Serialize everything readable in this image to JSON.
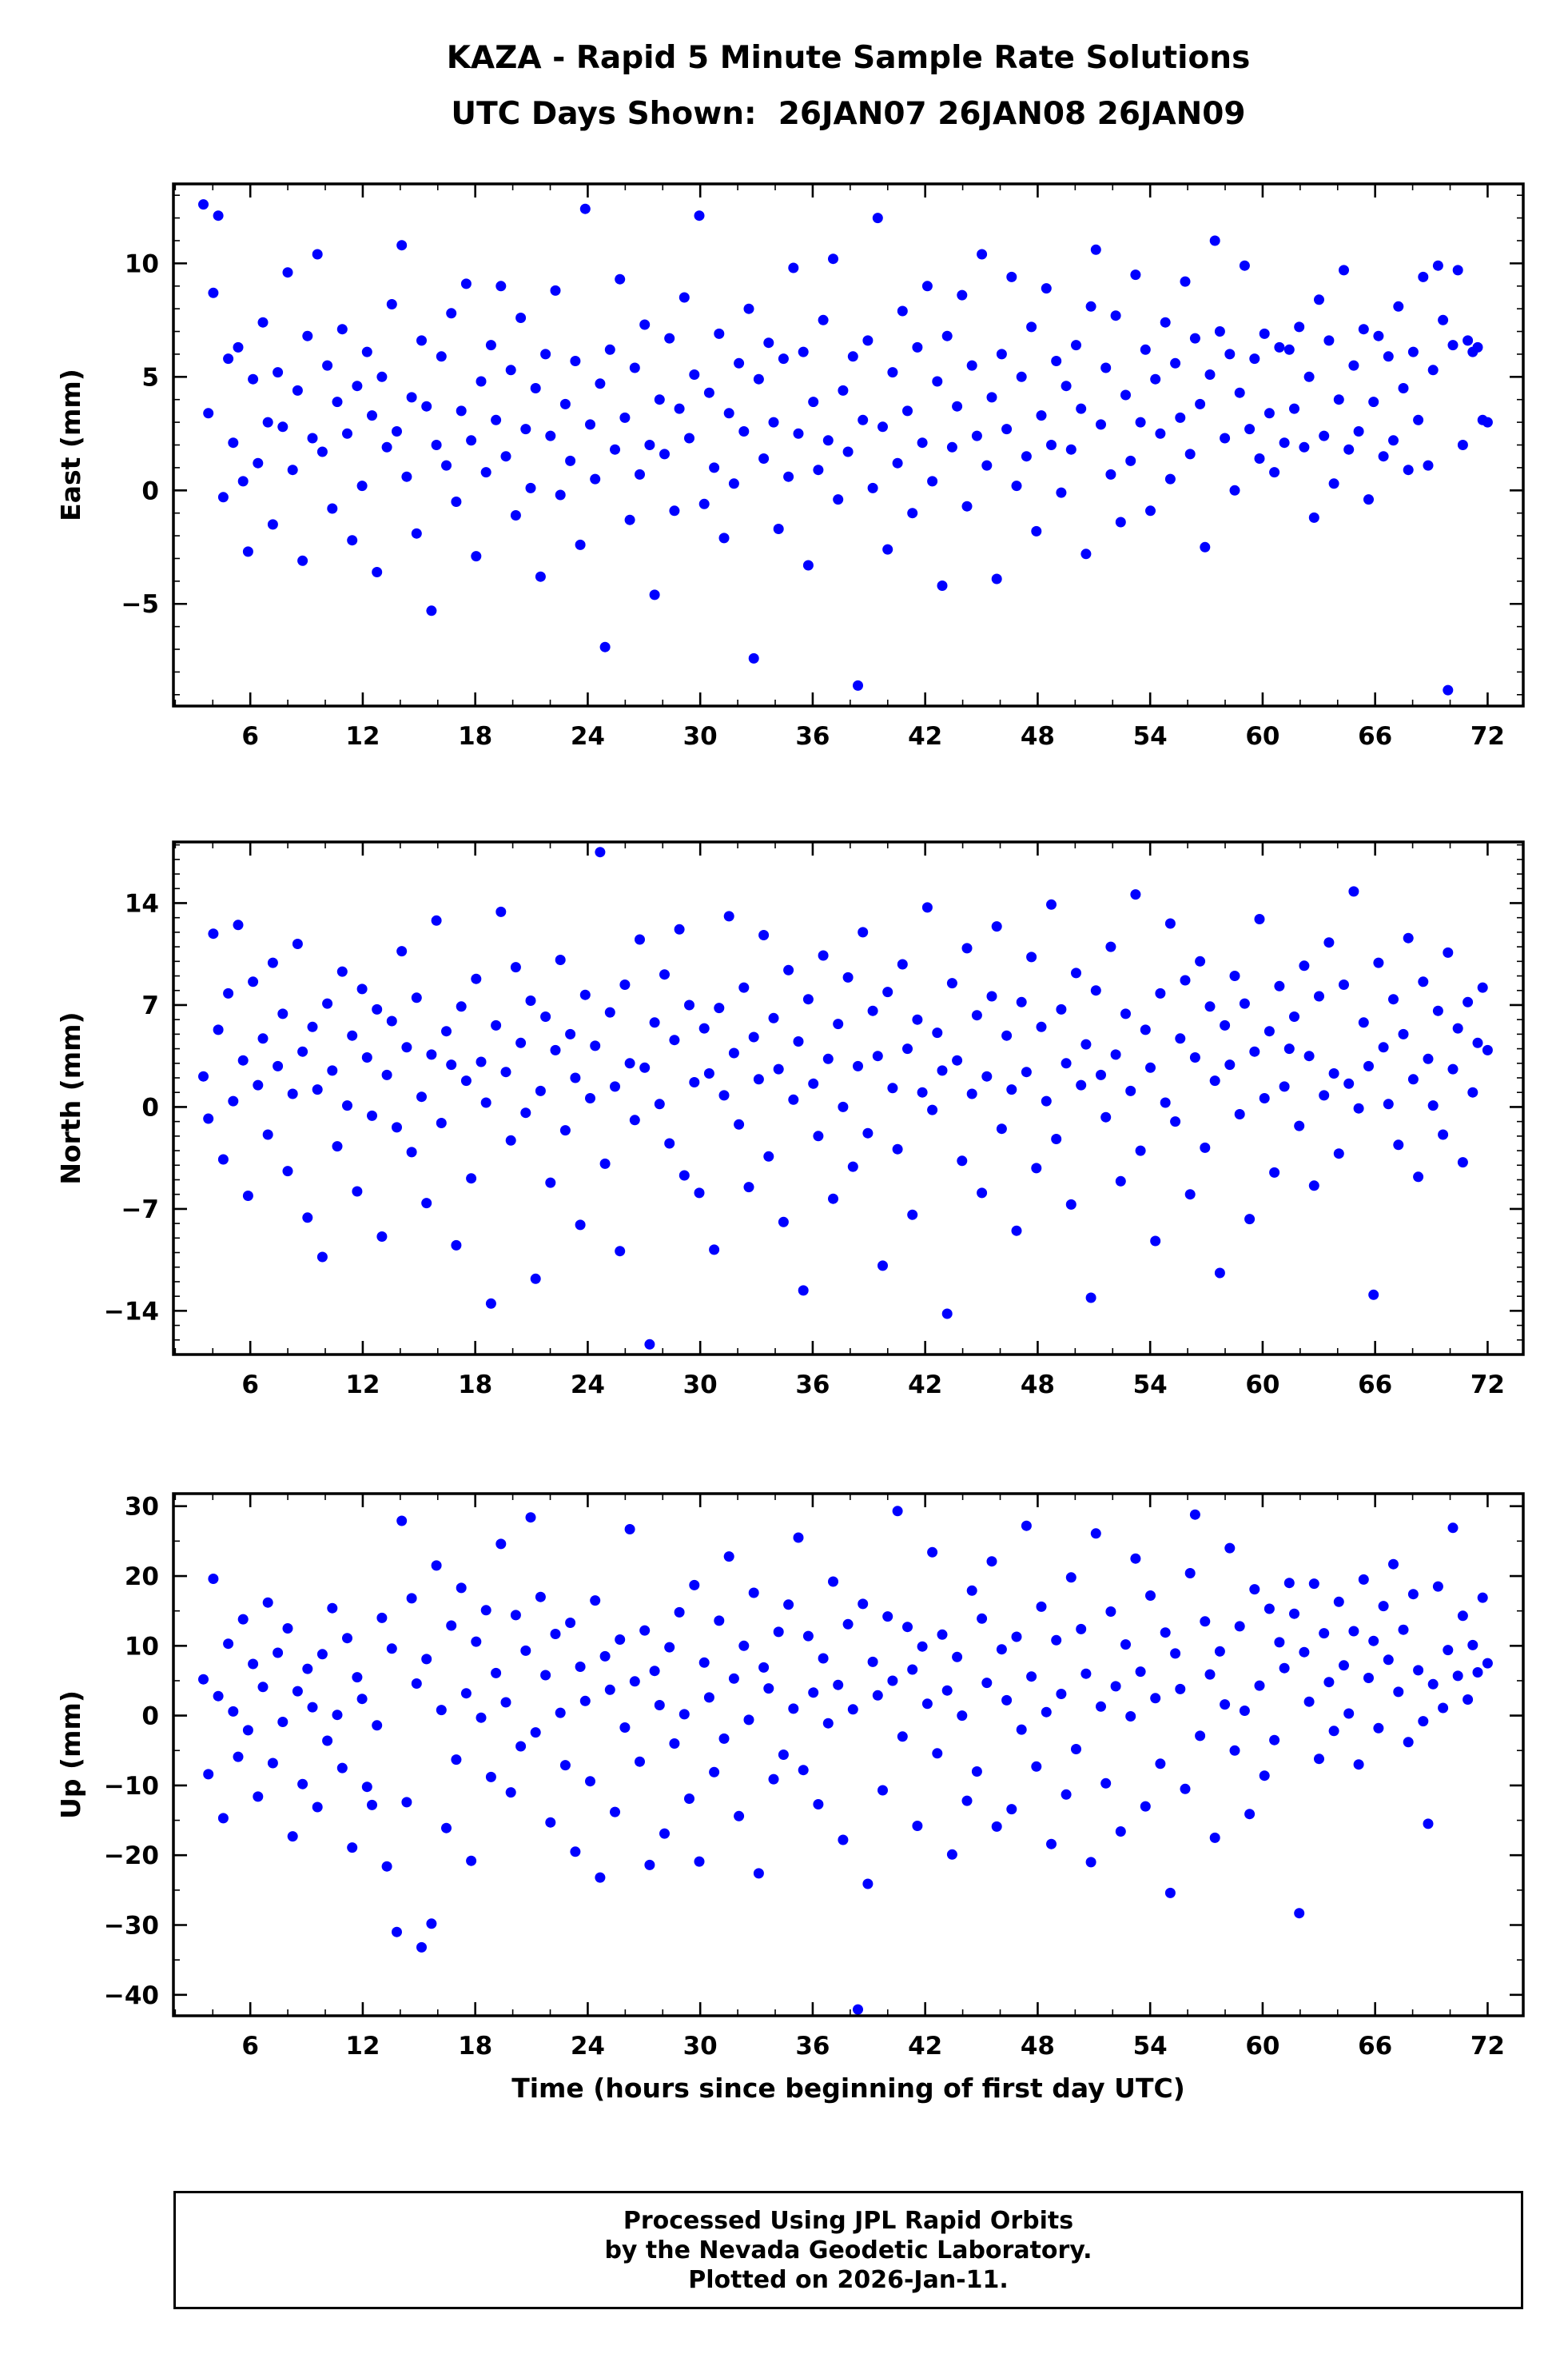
{
  "station_id": "KAZA",
  "title": {
    "line1": "KAZA - Rapid 5 Minute Sample Rate Solutions",
    "line2": "UTC Days Shown:  26JAN07 26JAN08 26JAN09"
  },
  "xlabel": "Time (hours since beginning of first day UTC)",
  "footer": {
    "line1": "Processed Using JPL Rapid Orbits",
    "line2": "by the Nevada Geodetic Laboratory.",
    "line3": "Plotted on 2026-Jan-11."
  },
  "colors": {
    "marker": "#0000ff",
    "frame": "#000000",
    "background": "#ffffff"
  },
  "chart_data": [
    {
      "type": "scatter",
      "name": "east",
      "ylabel": "East (mm)",
      "units": "mm",
      "xlim": [
        1.9,
        73.9
      ],
      "ylim": [
        -9.5,
        13.5
      ],
      "xticks": [
        6,
        12,
        18,
        24,
        30,
        36,
        42,
        48,
        54,
        60,
        66,
        72
      ],
      "yticks": [
        -5,
        0,
        5,
        10
      ],
      "x_minor_step": 2,
      "y_minor_step": 1,
      "marker": {
        "shape": "circle",
        "radius_px": 6.5,
        "color": "#0000ff"
      },
      "x_start": 3.5,
      "x_end": 72.0,
      "y_values": [
        12.6,
        3.4,
        8.7,
        12.1,
        -0.3,
        5.8,
        2.1,
        6.3,
        0.4,
        -2.7,
        4.9,
        1.2,
        7.4,
        3.0,
        -1.5,
        5.2,
        2.8,
        9.6,
        0.9,
        4.4,
        -3.1,
        6.8,
        2.3,
        10.4,
        1.7,
        5.5,
        -0.8,
        3.9,
        7.1,
        2.5,
        -2.2,
        4.6,
        0.2,
        6.1,
        3.3,
        -3.6,
        5.0,
        1.9,
        8.2,
        2.6,
        10.8,
        0.6,
        4.1,
        -1.9,
        6.6,
        3.7,
        -5.3,
        2.0,
        5.9,
        1.1,
        7.8,
        -0.5,
        3.5,
        9.1,
        2.2,
        -2.9,
        4.8,
        0.8,
        6.4,
        3.1,
        9.0,
        1.5,
        5.3,
        -1.1,
        7.6,
        2.7,
        0.1,
        4.5,
        -3.8,
        6.0,
        2.4,
        8.8,
        -0.2,
        3.8,
        1.3,
        5.7,
        -2.4,
        12.4,
        2.9,
        0.5,
        4.7,
        -6.9,
        6.2,
        1.8,
        9.3,
        3.2,
        -1.3,
        5.4,
        0.7,
        7.3,
        2.0,
        -4.6,
        4.0,
        1.6,
        6.7,
        -0.9,
        3.6,
        8.5,
        2.3,
        5.1,
        12.1,
        -0.6,
        4.3,
        1.0,
        6.9,
        -2.1,
        3.4,
        0.3,
        5.6,
        2.6,
        8.0,
        -7.4,
        4.9,
        1.4,
        6.5,
        3.0,
        -1.7,
        5.8,
        0.6,
        9.8,
        2.5,
        6.1,
        -3.3,
        3.9,
        0.9,
        7.5,
        2.2,
        10.2,
        -0.4,
        4.4,
        1.7,
        5.9,
        -8.6,
        3.1,
        6.6,
        0.1,
        12.0,
        2.8,
        -2.6,
        5.2,
        1.2,
        7.9,
        3.5,
        -1.0,
        6.3,
        2.1,
        9.0,
        0.4,
        4.8,
        -4.2,
        6.8,
        1.9,
        3.7,
        8.6,
        -0.7,
        5.5,
        2.4,
        10.4,
        1.1,
        4.1,
        -3.9,
        6.0,
        2.7,
        9.4,
        0.2,
        5.0,
        1.5,
        7.2,
        -1.8,
        3.3,
        8.9,
        2.0,
        5.7,
        -0.1,
        4.6,
        1.8,
        6.4,
        3.6,
        -2.8,
        8.1,
        10.6,
        2.9,
        5.4,
        0.7,
        7.7,
        -1.4,
        4.2,
        1.3,
        9.5,
        3.0,
        6.2,
        -0.9,
        4.9,
        2.5,
        7.4,
        0.5,
        5.6,
        3.2,
        9.2,
        1.6,
        6.7,
        3.8,
        -2.5,
        5.1,
        11.0,
        7.0,
        2.3,
        6.0,
        0.0,
        4.3,
        9.9,
        2.7,
        5.8,
        1.4,
        6.9,
        3.4,
        0.8,
        6.3,
        2.1,
        6.2,
        3.6,
        7.2,
        1.9,
        5.0,
        -1.2,
        8.4,
        2.4,
        6.6,
        0.3,
        4.0,
        9.7,
        1.8,
        5.5,
        2.6,
        7.1,
        -0.4,
        3.9,
        6.8,
        1.5,
        5.9,
        2.2,
        8.1,
        4.5,
        0.9,
        6.1,
        3.1,
        9.4,
        1.1,
        5.3,
        9.9,
        7.5,
        -8.8,
        6.4,
        9.7,
        2.0,
        6.6,
        6.1,
        6.3,
        3.1,
        3.0
      ]
    },
    {
      "type": "scatter",
      "name": "north",
      "ylabel": "North (mm)",
      "units": "mm",
      "xlim": [
        1.9,
        73.9
      ],
      "ylim": [
        -17.0,
        18.2
      ],
      "xticks": [
        6,
        12,
        18,
        24,
        30,
        36,
        42,
        48,
        54,
        60,
        66,
        72
      ],
      "yticks": [
        -14,
        -7,
        0,
        7,
        14
      ],
      "x_minor_step": 2,
      "y_minor_step": 1,
      "marker": {
        "shape": "circle",
        "radius_px": 6.5,
        "color": "#0000ff"
      },
      "x_start": 3.5,
      "x_end": 72.0,
      "y_values": [
        2.1,
        -0.8,
        11.9,
        5.3,
        -3.6,
        7.8,
        0.4,
        12.5,
        3.2,
        -6.1,
        8.6,
        1.5,
        4.7,
        -1.9,
        9.9,
        2.8,
        6.4,
        -4.4,
        0.9,
        11.2,
        3.8,
        -7.6,
        5.5,
        1.2,
        -10.3,
        7.1,
        2.5,
        -2.7,
        9.3,
        0.1,
        4.9,
        -5.8,
        8.1,
        3.4,
        -0.6,
        6.7,
        -8.9,
        2.2,
        5.9,
        -1.4,
        10.7,
        4.1,
        -3.1,
        7.5,
        0.7,
        -6.6,
        3.6,
        12.8,
        -1.1,
        5.2,
        2.9,
        -9.5,
        6.9,
        1.8,
        -4.9,
        8.8,
        3.1,
        0.3,
        -13.5,
        5.6,
        13.4,
        2.4,
        -2.3,
        9.6,
        4.4,
        -0.4,
        7.3,
        -11.8,
        1.1,
        6.2,
        -5.2,
        3.9,
        10.1,
        -1.6,
        5.0,
        2.0,
        -8.1,
        7.7,
        0.6,
        4.2,
        17.5,
        -3.9,
        6.5,
        1.4,
        -9.9,
        8.4,
        3.0,
        -0.9,
        11.5,
        2.7,
        -16.3,
        5.8,
        0.2,
        9.1,
        -2.5,
        4.6,
        12.2,
        -4.7,
        7.0,
        1.7,
        -5.9,
        5.4,
        2.3,
        -9.8,
        6.8,
        0.8,
        13.1,
        3.7,
        -1.2,
        8.2,
        -5.5,
        4.8,
        1.9,
        11.8,
        -3.4,
        6.1,
        2.6,
        -7.9,
        9.4,
        0.5,
        4.5,
        -12.6,
        7.4,
        1.6,
        -2.0,
        10.4,
        3.3,
        -6.3,
        5.7,
        0.0,
        8.9,
        -4.1,
        2.8,
        12.0,
        -1.8,
        6.6,
        3.5,
        -10.9,
        7.9,
        1.3,
        -2.9,
        9.8,
        4.0,
        -7.4,
        6.0,
        1.0,
        13.7,
        -0.2,
        5.1,
        2.5,
        -14.2,
        8.5,
        3.2,
        -3.7,
        10.9,
        0.9,
        6.3,
        -5.9,
        2.1,
        7.6,
        12.4,
        -1.5,
        4.9,
        1.2,
        -8.5,
        7.2,
        2.4,
        10.3,
        -4.2,
        5.5,
        0.4,
        13.9,
        -2.2,
        6.7,
        3.0,
        -6.7,
        9.2,
        1.5,
        4.3,
        -13.1,
        8.0,
        2.2,
        -0.7,
        11.0,
        3.6,
        -5.1,
        6.4,
        1.1,
        14.6,
        -3.0,
        5.3,
        2.7,
        -9.2,
        7.8,
        0.3,
        12.6,
        -1.0,
        4.7,
        8.7,
        -6.0,
        3.4,
        10.0,
        -2.8,
        6.9,
        1.8,
        -11.4,
        5.6,
        2.9,
        9.0,
        -0.5,
        7.1,
        -7.7,
        3.8,
        12.9,
        0.6,
        5.2,
        -4.5,
        8.3,
        1.4,
        4.0,
        6.2,
        -1.3,
        9.7,
        3.5,
        -5.4,
        7.6,
        0.8,
        11.3,
        2.3,
        -3.2,
        8.4,
        1.6,
        14.8,
        -0.1,
        5.8,
        2.8,
        -12.9,
        9.9,
        4.1,
        0.2,
        7.4,
        -2.6,
        5.0,
        11.6,
        1.9,
        -4.8,
        8.6,
        3.3,
        0.1,
        6.6,
        -1.9,
        10.6,
        2.6,
        5.4,
        -3.8,
        7.2,
        1.0,
        4.4,
        8.2,
        3.9
      ]
    },
    {
      "type": "scatter",
      "name": "up",
      "ylabel": "Up (mm)",
      "units": "mm",
      "xlim": [
        1.9,
        73.9
      ],
      "ylim": [
        -43.0,
        31.8
      ],
      "xticks": [
        6,
        12,
        18,
        24,
        30,
        36,
        42,
        48,
        54,
        60,
        66,
        72
      ],
      "yticks": [
        -40,
        -30,
        -20,
        -10,
        0,
        10,
        20,
        30
      ],
      "x_minor_step": 2,
      "y_minor_step": 5,
      "marker": {
        "shape": "circle",
        "radius_px": 6.5,
        "color": "#0000ff"
      },
      "x_start": 3.5,
      "x_end": 72.0,
      "y_values": [
        5.2,
        -8.4,
        19.6,
        2.8,
        -14.7,
        10.3,
        0.6,
        -5.9,
        13.8,
        -2.1,
        7.4,
        -11.6,
        4.1,
        16.2,
        -6.8,
        9.0,
        -0.9,
        12.5,
        -17.3,
        3.5,
        -9.8,
        6.7,
        1.2,
        -13.1,
        8.8,
        -3.6,
        15.4,
        0.1,
        -7.5,
        11.1,
        -18.9,
        5.5,
        2.4,
        -10.2,
        -12.8,
        -1.4,
        14.0,
        -21.6,
        9.6,
        -31.0,
        27.9,
        -12.4,
        16.8,
        4.6,
        -33.2,
        8.1,
        -29.8,
        21.5,
        0.8,
        -16.1,
        12.9,
        -6.3,
        18.3,
        3.2,
        -20.8,
        10.6,
        -0.3,
        15.1,
        -8.8,
        6.1,
        24.6,
        1.9,
        -11.0,
        14.4,
        -4.4,
        9.3,
        28.4,
        -2.4,
        17.0,
        5.8,
        -15.3,
        11.7,
        0.4,
        -7.1,
        13.3,
        -19.5,
        7.0,
        2.1,
        -9.4,
        16.5,
        -23.2,
        8.5,
        3.7,
        -13.8,
        10.9,
        -1.7,
        26.7,
        4.9,
        -6.6,
        12.2,
        -21.4,
        6.4,
        1.5,
        -16.9,
        9.8,
        -4.0,
        14.8,
        0.2,
        -11.9,
        18.7,
        -20.9,
        7.6,
        2.6,
        -8.1,
        13.6,
        -3.3,
        22.8,
        5.3,
        -14.4,
        10.0,
        -0.6,
        17.6,
        -22.6,
        6.9,
        3.9,
        -9.1,
        12.0,
        -5.6,
        15.9,
        1.0,
        25.5,
        -7.8,
        11.4,
        3.3,
        -12.7,
        8.2,
        -1.1,
        19.2,
        4.4,
        -17.8,
        13.1,
        0.9,
        -42.1,
        16.0,
        -24.1,
        7.7,
        2.9,
        -10.7,
        14.2,
        5.0,
        29.3,
        -3.0,
        12.7,
        6.6,
        -15.8,
        9.9,
        1.7,
        23.4,
        -5.4,
        11.6,
        3.6,
        -19.9,
        8.4,
        0.0,
        -12.2,
        17.9,
        -8.0,
        13.9,
        4.7,
        22.1,
        -15.9,
        9.5,
        2.2,
        -13.4,
        11.3,
        -2.0,
        27.2,
        5.6,
        -7.3,
        15.6,
        0.5,
        -18.4,
        10.8,
        3.1,
        -11.3,
        19.8,
        -4.8,
        12.4,
        6.0,
        -21.0,
        26.1,
        1.3,
        -9.7,
        14.9,
        4.2,
        -16.6,
        10.2,
        -0.1,
        22.5,
        6.3,
        -13.0,
        17.2,
        2.5,
        -6.9,
        11.9,
        -25.4,
        8.9,
        3.8,
        -10.5,
        20.4,
        28.8,
        -2.9,
        13.5,
        5.9,
        -17.5,
        9.2,
        1.6,
        24.0,
        -5.0,
        12.8,
        0.7,
        -14.1,
        18.1,
        4.3,
        -8.6,
        15.3,
        -3.5,
        10.5,
        6.8,
        19.0,
        14.6,
        -28.3,
        9.1,
        2.0,
        18.9,
        -6.2,
        11.8,
        4.8,
        -2.2,
        16.3,
        7.2,
        0.3,
        12.1,
        -7.0,
        19.5,
        5.4,
        10.7,
        -1.8,
        15.7,
        8.0,
        21.7,
        3.4,
        12.3,
        -3.8,
        17.4,
        6.5,
        -0.8,
        -15.5,
        4.5,
        18.5,
        1.1,
        9.4,
        26.9,
        5.7,
        14.3,
        2.3,
        10.1,
        6.2,
        16.9,
        7.5
      ]
    }
  ]
}
